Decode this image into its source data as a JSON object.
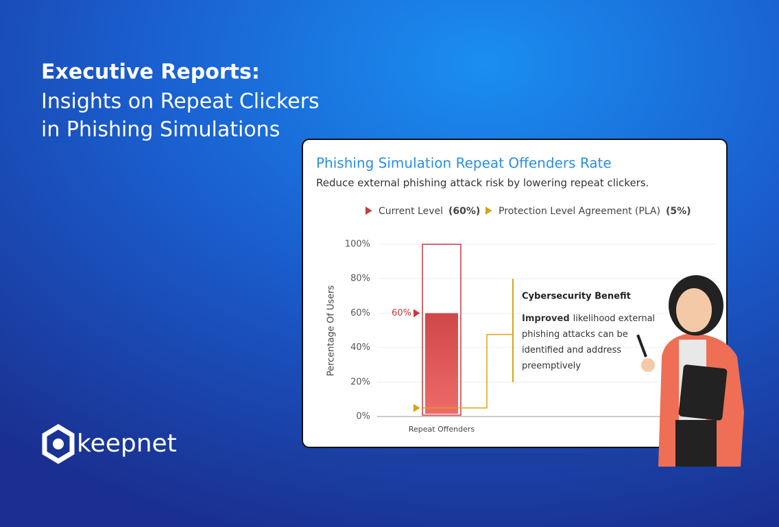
{
  "header": {
    "title": "Executive Reports:",
    "subtitle_lines": [
      "Insights on Repeat Clickers",
      "in Phishing Simulations"
    ]
  },
  "logo": "keepnet",
  "chart_data": {
    "type": "bar",
    "title": "Phishing Simulation Repeat Offenders Rate",
    "subtitle": "Reduce external phishing attack risk by lowering repeat clickers.",
    "y_label": "Percentage Of Users",
    "categories": [
      "Repeat Offenders"
    ],
    "series": [
      {
        "name": "Current Level",
        "legend_value_label": "(60%)",
        "color": "#c9393d",
        "values": [
          60
        ],
        "value_labels": [
          "60%"
        ]
      },
      {
        "name": "Protection Level Agreement (PLA)",
        "legend_value_label": "(5%)",
        "color": "#d4a514",
        "values": [
          5
        ]
      }
    ],
    "ylim": [
      0,
      100
    ],
    "yticks": [
      {
        "value": 0,
        "label": "0%"
      },
      {
        "value": 20,
        "label": "20%"
      },
      {
        "value": 40,
        "label": "40%"
      },
      {
        "value": 60,
        "label": "60%"
      },
      {
        "value": 80,
        "label": "80%"
      },
      {
        "value": 100,
        "label": "100%"
      }
    ],
    "grid": true,
    "annotation": {
      "title": "Cybersecurity Benefit",
      "bold": "Improved",
      "lines": [
        "likelihood external",
        "phishing attacks can be",
        "identified and address",
        "preemptively"
      ]
    }
  }
}
